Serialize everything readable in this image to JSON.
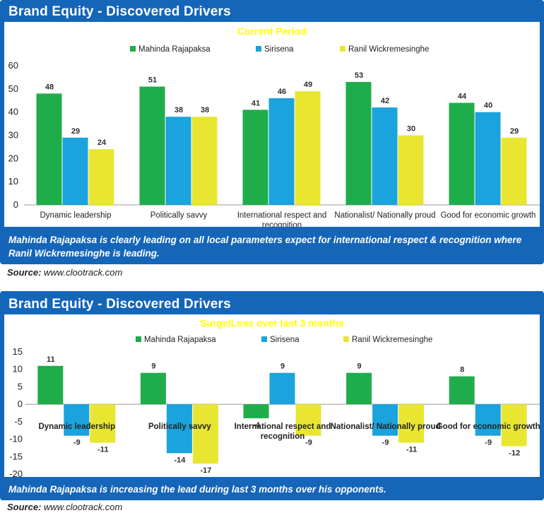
{
  "colors": {
    "panel_bg": "#1565b8",
    "subtitle": "#ffff00",
    "series": [
      "#1fad4b",
      "#1aa3dc",
      "#e9e632"
    ]
  },
  "panel1": {
    "title": "Brand Equity - Discovered Drivers",
    "caption": "Mahinda Rajapaksa is clearly leading on all local parameters expect for international respect & recognition where Ranil Wickremesinghe is leading.",
    "source_label": "Source:",
    "source_url": "www.clootrack.com"
  },
  "panel2": {
    "title": "Brand Equity - Discovered Drivers",
    "caption": "Mahinda Rajapaksa is increasing the lead during last 3 months over his opponents.",
    "source_label": "Source:",
    "source_url": "www.clootrack.com"
  },
  "chart_data": [
    {
      "type": "bar",
      "subtitle": "Current Period",
      "categories": [
        "Dynamic leadership",
        "Politically savvy",
        "International respect and recognition",
        "Nationalist/ Nationally proud",
        "Good for economic growth"
      ],
      "series": [
        {
          "name": "Mahinda Rajapaksa",
          "color": "#1fad4b",
          "values": [
            48,
            51,
            41,
            53,
            44
          ]
        },
        {
          "name": "Sirisena",
          "color": "#1aa3dc",
          "values": [
            29,
            38,
            46,
            42,
            40
          ]
        },
        {
          "name": "Ranil Wickremesinghe",
          "color": "#e9e632",
          "values": [
            24,
            38,
            49,
            30,
            29
          ]
        }
      ],
      "ylim": [
        0,
        60
      ],
      "yticks": [
        0,
        10,
        20,
        30,
        40,
        50,
        60
      ],
      "legend": "top-center",
      "grid": false
    },
    {
      "type": "bar",
      "subtitle": "Surge/Loss over last 3 months",
      "categories": [
        "Dynamic leadership",
        "Politically savvy",
        "International respect and recognition",
        "Nationalist/ Nationally proud",
        "Good for economic growth"
      ],
      "series": [
        {
          "name": "Mahinda Rajapaksa",
          "color": "#1fad4b",
          "values": [
            11,
            9,
            -4,
            9,
            8
          ]
        },
        {
          "name": "Sirisena",
          "color": "#1aa3dc",
          "values": [
            -9,
            -14,
            9,
            -9,
            -9
          ]
        },
        {
          "name": "Ranil Wickremesinghe",
          "color": "#e9e632",
          "values": [
            -11,
            -17,
            -9,
            -11,
            -12
          ]
        }
      ],
      "ylim": [
        -20,
        15
      ],
      "yticks": [
        -20,
        -15,
        -10,
        -5,
        0,
        5,
        10,
        15
      ],
      "legend": "top-center",
      "grid": false
    }
  ]
}
